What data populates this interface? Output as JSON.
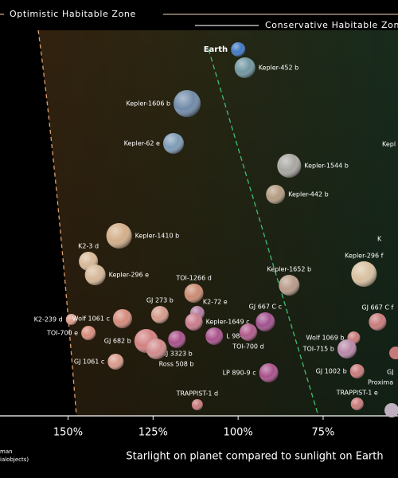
{
  "chart_data": {
    "type": "scatter",
    "legend": [
      "Optimistic Habitable Zone",
      "Conservative Habitable Zone"
    ],
    "xlabel": "Starlight on planet compared to sunlight on Earth",
    "footnote": [
      "man",
      "ialobjects)"
    ],
    "cut_labels": [
      "Kepl",
      "K",
      "GJ",
      "Proxima"
    ],
    "xlim": [
      170,
      53
    ],
    "xticks": [
      {
        "value": 150,
        "label": "150%"
      },
      {
        "value": 125,
        "label": "125%"
      },
      {
        "value": 100,
        "label": "100%"
      },
      {
        "value": 75,
        "label": "75%"
      }
    ],
    "points": [
      {
        "name": "Earth",
        "x": 100,
        "color": "#3f78c4"
      },
      {
        "name": "Kepler-452 b",
        "x": 98,
        "color": "#6f96a0"
      },
      {
        "name": "Kepler-1606 b",
        "x": 115,
        "color": "#6f8aa8"
      },
      {
        "name": "Kepler-62 e",
        "x": 119,
        "color": "#7d9ab5"
      },
      {
        "name": "Kepler-1544 b",
        "x": 85,
        "color": "#a8a6a0"
      },
      {
        "name": "Kepler-442 b",
        "x": 89,
        "color": "#b29b80"
      },
      {
        "name": "Kepler-1410 b",
        "x": 135,
        "color": "#d2ae88"
      },
      {
        "name": "K2-3 d",
        "x": 144,
        "color": "#d8b898"
      },
      {
        "name": "Kepler-296 e",
        "x": 142,
        "color": "#d6b898"
      },
      {
        "name": "TOI-1266 d",
        "x": 113,
        "color": "#c98a70"
      },
      {
        "name": "Kepler-1652 b",
        "x": 85,
        "color": "#b89a88"
      },
      {
        "name": "Kepler-296 f",
        "x": 63,
        "color": "#d8c0a0"
      },
      {
        "name": "K2-239 d",
        "x": 149,
        "color": "#d89a8a"
      },
      {
        "name": "Wolf 1061 c",
        "x": 134,
        "color": "#d48a7a"
      },
      {
        "name": "GJ 273 b",
        "x": 123,
        "color": "#d49a88"
      },
      {
        "name": "K2-72 e",
        "x": 112,
        "color": "#b07aa0"
      },
      {
        "name": "Kepler-1649 c",
        "x": 113,
        "color": "#c87a8a"
      },
      {
        "name": "GJ 667 C c",
        "x": 92,
        "color": "#a0508c"
      },
      {
        "name": "GJ 667 C f",
        "x": 59,
        "color": "#c87a7a"
      },
      {
        "name": "TOI-700 e",
        "x": 144,
        "color": "#d88a7a"
      },
      {
        "name": "GJ 682 b",
        "x": 127,
        "color": "#d28080"
      },
      {
        "name": "GJ 3323 b",
        "x": 118,
        "color": "#a8508a"
      },
      {
        "name": "L 98-59 f",
        "x": 107,
        "color": "#a8508a"
      },
      {
        "name": "TOI-700 d",
        "x": 97,
        "color": "#b05a8a"
      },
      {
        "name": "Wolf 1069 b",
        "x": 66,
        "color": "#c87a7a"
      },
      {
        "name": "TOI-715 b",
        "x": 68,
        "color": "#b888a8"
      },
      {
        "name": "GJ 1061 c",
        "x": 136,
        "color": "#d89a8a"
      },
      {
        "name": "Ross 508 b",
        "x": 124,
        "color": "#d08a8a"
      },
      {
        "name": "LP 890-9 c",
        "x": 91,
        "color": "#a8508a"
      },
      {
        "name": "GJ 1002 b",
        "x": 65,
        "color": "#c87a7a"
      },
      {
        "name": "TRAPPIST-1 d",
        "x": 112,
        "color": "#c87a7a"
      },
      {
        "name": "TRAPPIST-1 e",
        "x": 65,
        "color": "#c87a7a"
      }
    ]
  }
}
